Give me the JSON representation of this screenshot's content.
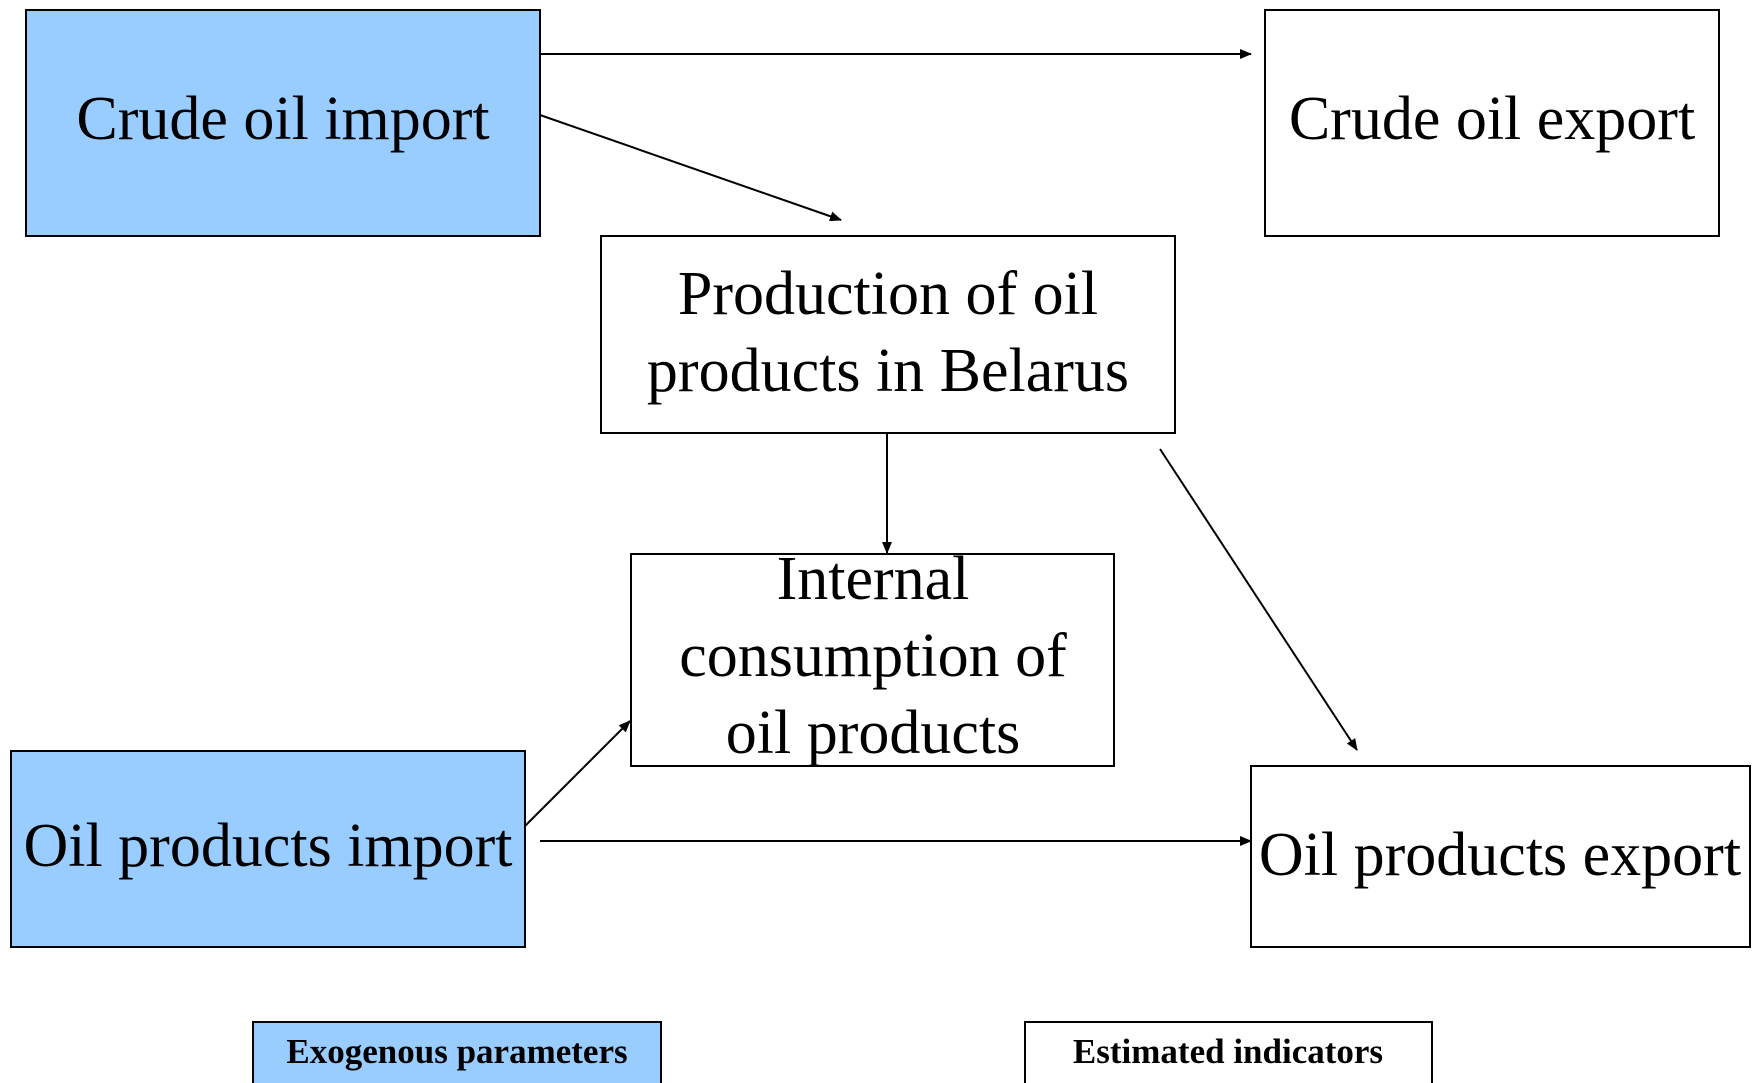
{
  "nodes": [
    {
      "label": [
        "Crude oil import"
      ]
    },
    {
      "label": [
        "Crude oil export"
      ]
    },
    {
      "label": [
        "Production of oil",
        "products in Belarus"
      ]
    },
    {
      "label": [
        "Internal",
        "consumption of",
        "oil products"
      ]
    },
    {
      "label": [
        "Oil products import"
      ]
    },
    {
      "label": [
        "Oil products export"
      ]
    }
  ],
  "legend": [
    {
      "label": "Exogenous parameters"
    },
    {
      "label": "Estimated indicators"
    }
  ]
}
